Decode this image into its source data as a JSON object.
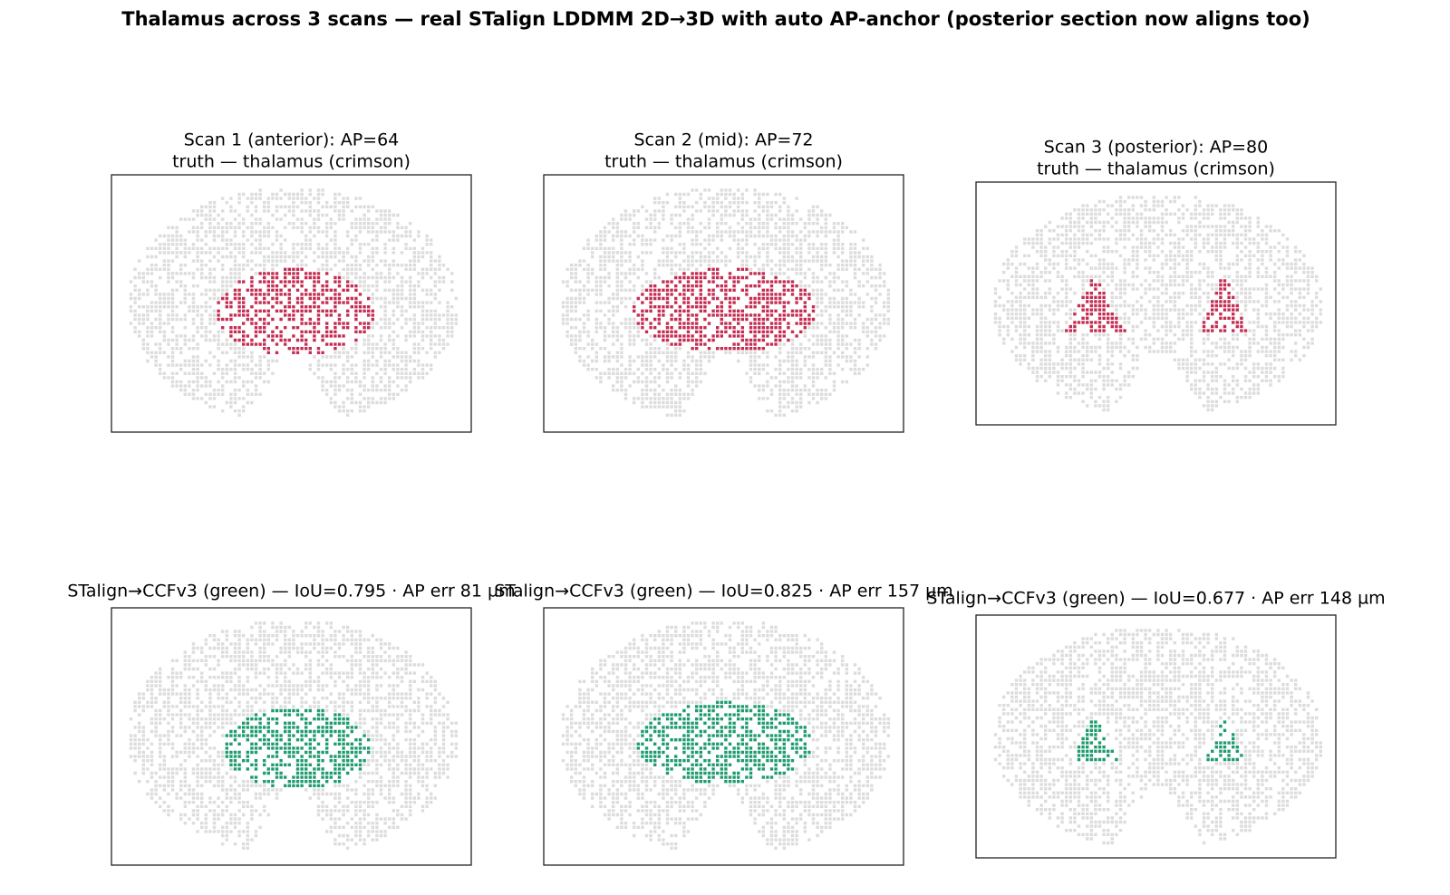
{
  "title": "Thalamus across 3 scans — real STalign LDDMM 2D→3D with auto AP-anchor (posterior section now aligns too)",
  "panels": [
    {
      "lines": [
        "Scan 1 (anterior): AP=64",
        "truth — thalamus (crimson)"
      ]
    },
    {
      "lines": [
        "Scan 2 (mid): AP=72",
        "truth — thalamus (crimson)"
      ]
    },
    {
      "lines": [
        "Scan 3 (posterior): AP=80",
        "truth — thalamus (crimson)"
      ]
    },
    {
      "lines": [
        "STalign→CCFv3 (green) — IoU=0.795 · AP err 81 µm"
      ]
    },
    {
      "lines": [
        "STalign→CCFv3 (green) — IoU=0.825 · AP err 157 µm"
      ]
    },
    {
      "lines": [
        "STalign→CCFv3 (green) — IoU=0.677 · AP err 148 µm"
      ]
    }
  ]
}
